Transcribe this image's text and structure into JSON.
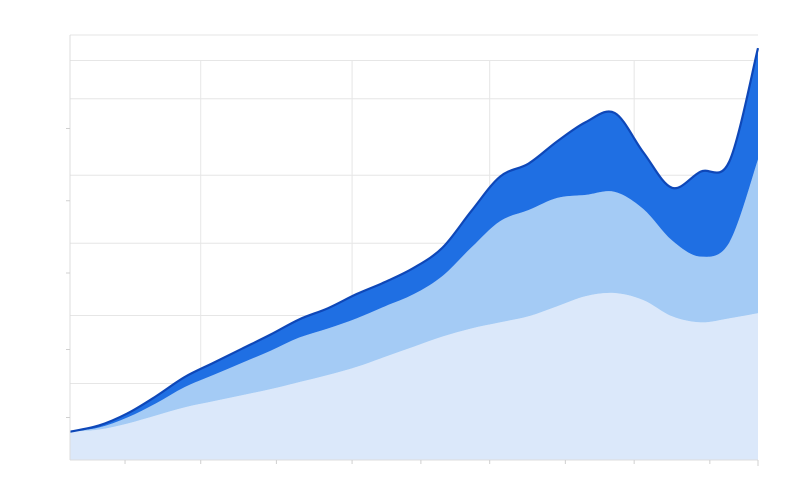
{
  "chart_data": {
    "type": "area",
    "stacked": true,
    "title": "",
    "xlabel": "",
    "ylabel": "",
    "x": [
      0,
      1,
      2,
      3,
      4,
      5,
      6,
      7,
      8,
      9,
      10,
      11,
      12,
      13,
      14,
      15,
      16,
      17,
      18,
      19,
      20,
      21,
      22,
      23,
      24
    ],
    "xlim": [
      0,
      24
    ],
    "ylim": [
      0,
      420
    ],
    "grid": true,
    "legend": "none",
    "series": [
      {
        "color": "#dbe8fa",
        "values": [
          28,
          30,
          36,
          44,
          52,
          58,
          64,
          70,
          77,
          84,
          92,
          102,
          112,
          122,
          130,
          136,
          142,
          152,
          162,
          165,
          158,
          142,
          136,
          140,
          145
        ]
      },
      {
        "color": "#a4cbf5",
        "values": [
          0,
          2,
          6,
          12,
          20,
          26,
          32,
          38,
          44,
          46,
          48,
          50,
          52,
          60,
          80,
          100,
          105,
          107,
          100,
          100,
          90,
          75,
          65,
          75,
          152
        ]
      },
      {
        "color": "#1f6fe3",
        "values": [
          0,
          2,
          4,
          7,
          10,
          12,
          14,
          16,
          18,
          20,
          24,
          24,
          26,
          28,
          36,
          44,
          46,
          56,
          72,
          78,
          56,
          52,
          84,
          80,
          110
        ]
      }
    ],
    "top_outline_color": "#0e47b8"
  }
}
